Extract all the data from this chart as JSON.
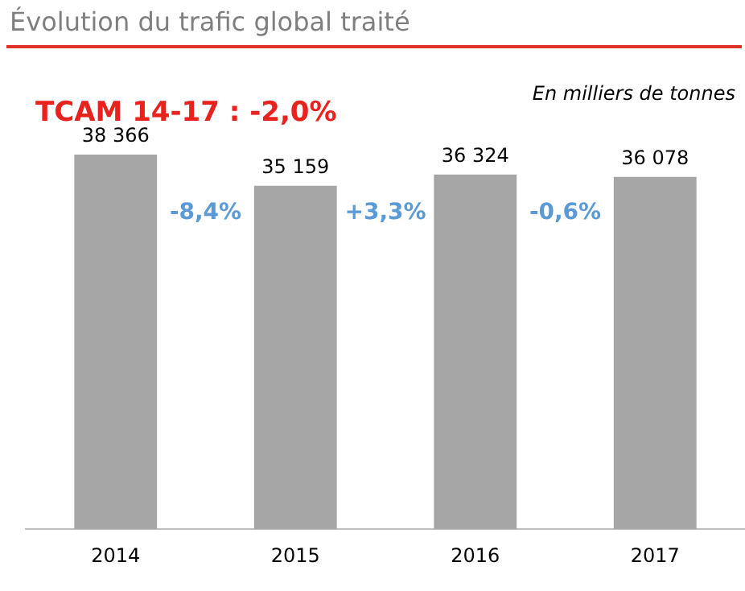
{
  "chart_data": {
    "type": "bar",
    "title": "Évolution du trafic global traité",
    "categories": [
      "2014",
      "2015",
      "2016",
      "2017"
    ],
    "values": [
      38366,
      35159,
      36324,
      36078
    ],
    "value_labels": [
      "38 366",
      "35 159",
      "36 324",
      "36 078"
    ],
    "color": "#a6a6a6",
    "annotations": [
      "TCAM 14-17 : -2,0%",
      "En milliers de tonnes",
      "-8,4%",
      "+3,3%",
      "-0,6%"
    ],
    "grid": false,
    "legend": false
  }
}
